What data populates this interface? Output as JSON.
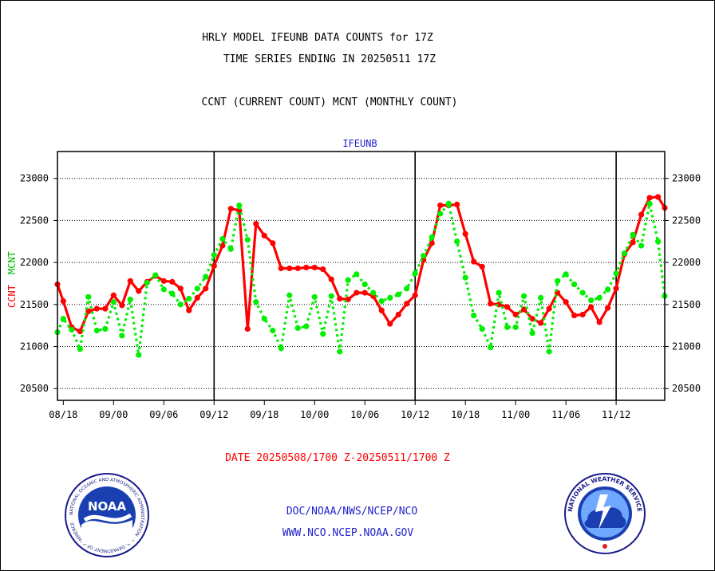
{
  "header": {
    "title_line1": "HRLY MODEL IFEUNB DATA COUNTS for 17Z",
    "title_line2": "TIME SERIES ENDING IN 20250511 17Z",
    "subtitle": "CCNT (CURRENT COUNT) MCNT (MONTHLY COUNT)"
  },
  "footer": {
    "date_range": "DATE 20250508/1700 Z-20250511/1700 Z",
    "org_path": "DOC/NOAA/NWS/NCEP/NCO",
    "website": "WWW.NCO.NCEP.NOAA.GOV"
  },
  "logos": {
    "noaa_text": "NOAA",
    "noaa_ring": "NATIONAL OCEANIC AND ATMOSPHERIC ADMINISTRATION · U.S. DEPARTMENT OF COMMERCE",
    "nws_ring": "NATIONAL WEATHER SERVICE"
  },
  "colors": {
    "ccnt": "#ff0000",
    "mcnt": "#00ee00",
    "text_blue": "#2222cc",
    "grid": "#000000"
  },
  "chart_data": {
    "type": "line",
    "title": "IFEUNB",
    "ylabel_left": "CCNT",
    "ylabel_left_2": "MCNT",
    "ylim": [
      20360,
      23320
    ],
    "y_ticks": [
      20500,
      21000,
      21500,
      22000,
      22500,
      23000
    ],
    "x_ticks": [
      "08/18",
      "09/00",
      "09/06",
      "09/12",
      "09/18",
      "10/00",
      "10/06",
      "10/12",
      "10/18",
      "11/00",
      "11/06",
      "11/12"
    ],
    "x_tick_hours": [
      0,
      6,
      12,
      18,
      24,
      30,
      36,
      42,
      48,
      54,
      60,
      66
    ],
    "x_range_hours": [
      -0.7,
      71.8
    ],
    "day_boundaries_hours": [
      18,
      42,
      66
    ],
    "grid": "horizontal dotted",
    "series": [
      {
        "name": "CCNT",
        "style": "solid",
        "points": [
          [
            -0.7,
            21740
          ],
          [
            0,
            21540
          ],
          [
            1,
            21230
          ],
          [
            2,
            21180
          ],
          [
            3,
            21420
          ],
          [
            4,
            21450
          ],
          [
            5,
            21450
          ],
          [
            6,
            21610
          ],
          [
            7,
            21490
          ],
          [
            8,
            21780
          ],
          [
            9,
            21660
          ],
          [
            10,
            21770
          ],
          [
            11,
            21840
          ],
          [
            12,
            21780
          ],
          [
            13,
            21770
          ],
          [
            14,
            21690
          ],
          [
            15,
            21430
          ],
          [
            16,
            21580
          ],
          [
            17,
            21690
          ],
          [
            18,
            21960
          ],
          [
            19,
            22200
          ],
          [
            20,
            22640
          ],
          [
            21,
            22620
          ],
          [
            22,
            21210
          ],
          [
            23,
            22460
          ],
          [
            24,
            22320
          ],
          [
            25,
            22230
          ],
          [
            26,
            21930
          ],
          [
            27,
            21930
          ],
          [
            28,
            21930
          ],
          [
            29,
            21940
          ],
          [
            30,
            21940
          ],
          [
            31,
            21920
          ],
          [
            32,
            21800
          ],
          [
            33,
            21570
          ],
          [
            34,
            21560
          ],
          [
            35,
            21640
          ],
          [
            36,
            21640
          ],
          [
            37,
            21600
          ],
          [
            38,
            21430
          ],
          [
            39,
            21270
          ],
          [
            40,
            21380
          ],
          [
            41,
            21510
          ],
          [
            42,
            21610
          ],
          [
            43,
            22030
          ],
          [
            44,
            22230
          ],
          [
            45,
            22680
          ],
          [
            46,
            22680
          ],
          [
            47,
            22690
          ],
          [
            48,
            22340
          ],
          [
            49,
            22010
          ],
          [
            50,
            21950
          ],
          [
            51,
            21510
          ],
          [
            52,
            21500
          ],
          [
            53,
            21470
          ],
          [
            54,
            21380
          ],
          [
            55,
            21440
          ],
          [
            56,
            21330
          ],
          [
            57,
            21280
          ],
          [
            58,
            21450
          ],
          [
            59,
            21640
          ],
          [
            60,
            21530
          ],
          [
            61,
            21370
          ],
          [
            62,
            21380
          ],
          [
            63,
            21470
          ],
          [
            64,
            21290
          ],
          [
            65,
            21460
          ],
          [
            66,
            21690
          ],
          [
            67,
            22100
          ],
          [
            68,
            22240
          ],
          [
            69,
            22570
          ],
          [
            70,
            22770
          ],
          [
            71,
            22780
          ],
          [
            71.8,
            22650
          ]
        ]
      },
      {
        "name": "MCNT",
        "style": "dotted",
        "points": [
          [
            -0.7,
            21170
          ],
          [
            0,
            21330
          ],
          [
            1,
            21200
          ],
          [
            2,
            20970
          ],
          [
            3,
            21590
          ],
          [
            4,
            21190
          ],
          [
            5,
            21210
          ],
          [
            6,
            21530
          ],
          [
            7,
            21130
          ],
          [
            8,
            21560
          ],
          [
            9,
            20900
          ],
          [
            10,
            21760
          ],
          [
            11,
            21850
          ],
          [
            12,
            21680
          ],
          [
            13,
            21630
          ],
          [
            14,
            21500
          ],
          [
            15,
            21570
          ],
          [
            16,
            21690
          ],
          [
            17,
            21830
          ],
          [
            18,
            22090
          ],
          [
            19,
            22280
          ],
          [
            20,
            22160
          ],
          [
            21,
            22680
          ],
          [
            22,
            22270
          ],
          [
            23,
            21530
          ],
          [
            24,
            21330
          ],
          [
            25,
            21190
          ],
          [
            26,
            20980
          ],
          [
            27,
            21610
          ],
          [
            28,
            21220
          ],
          [
            29,
            21240
          ],
          [
            30,
            21590
          ],
          [
            31,
            21150
          ],
          [
            32,
            21600
          ],
          [
            33,
            20940
          ],
          [
            34,
            21790
          ],
          [
            35,
            21860
          ],
          [
            36,
            21740
          ],
          [
            37,
            21640
          ],
          [
            38,
            21540
          ],
          [
            39,
            21580
          ],
          [
            40,
            21620
          ],
          [
            41,
            21690
          ],
          [
            42,
            21870
          ],
          [
            43,
            22080
          ],
          [
            44,
            22300
          ],
          [
            45,
            22580
          ],
          [
            46,
            22700
          ],
          [
            47,
            22250
          ],
          [
            48,
            21820
          ],
          [
            49,
            21370
          ],
          [
            50,
            21210
          ],
          [
            51,
            20990
          ],
          [
            52,
            21640
          ],
          [
            53,
            21230
          ],
          [
            54,
            21230
          ],
          [
            55,
            21600
          ],
          [
            56,
            21160
          ],
          [
            57,
            21580
          ],
          [
            58,
            20940
          ],
          [
            59,
            21780
          ],
          [
            60,
            21860
          ],
          [
            61,
            21740
          ],
          [
            62,
            21640
          ],
          [
            63,
            21550
          ],
          [
            64,
            21580
          ],
          [
            65,
            21680
          ],
          [
            66,
            21870
          ],
          [
            67,
            22110
          ],
          [
            68,
            22330
          ],
          [
            69,
            22200
          ],
          [
            70,
            22700
          ],
          [
            71,
            22250
          ],
          [
            71.8,
            21600
          ]
        ]
      }
    ]
  }
}
